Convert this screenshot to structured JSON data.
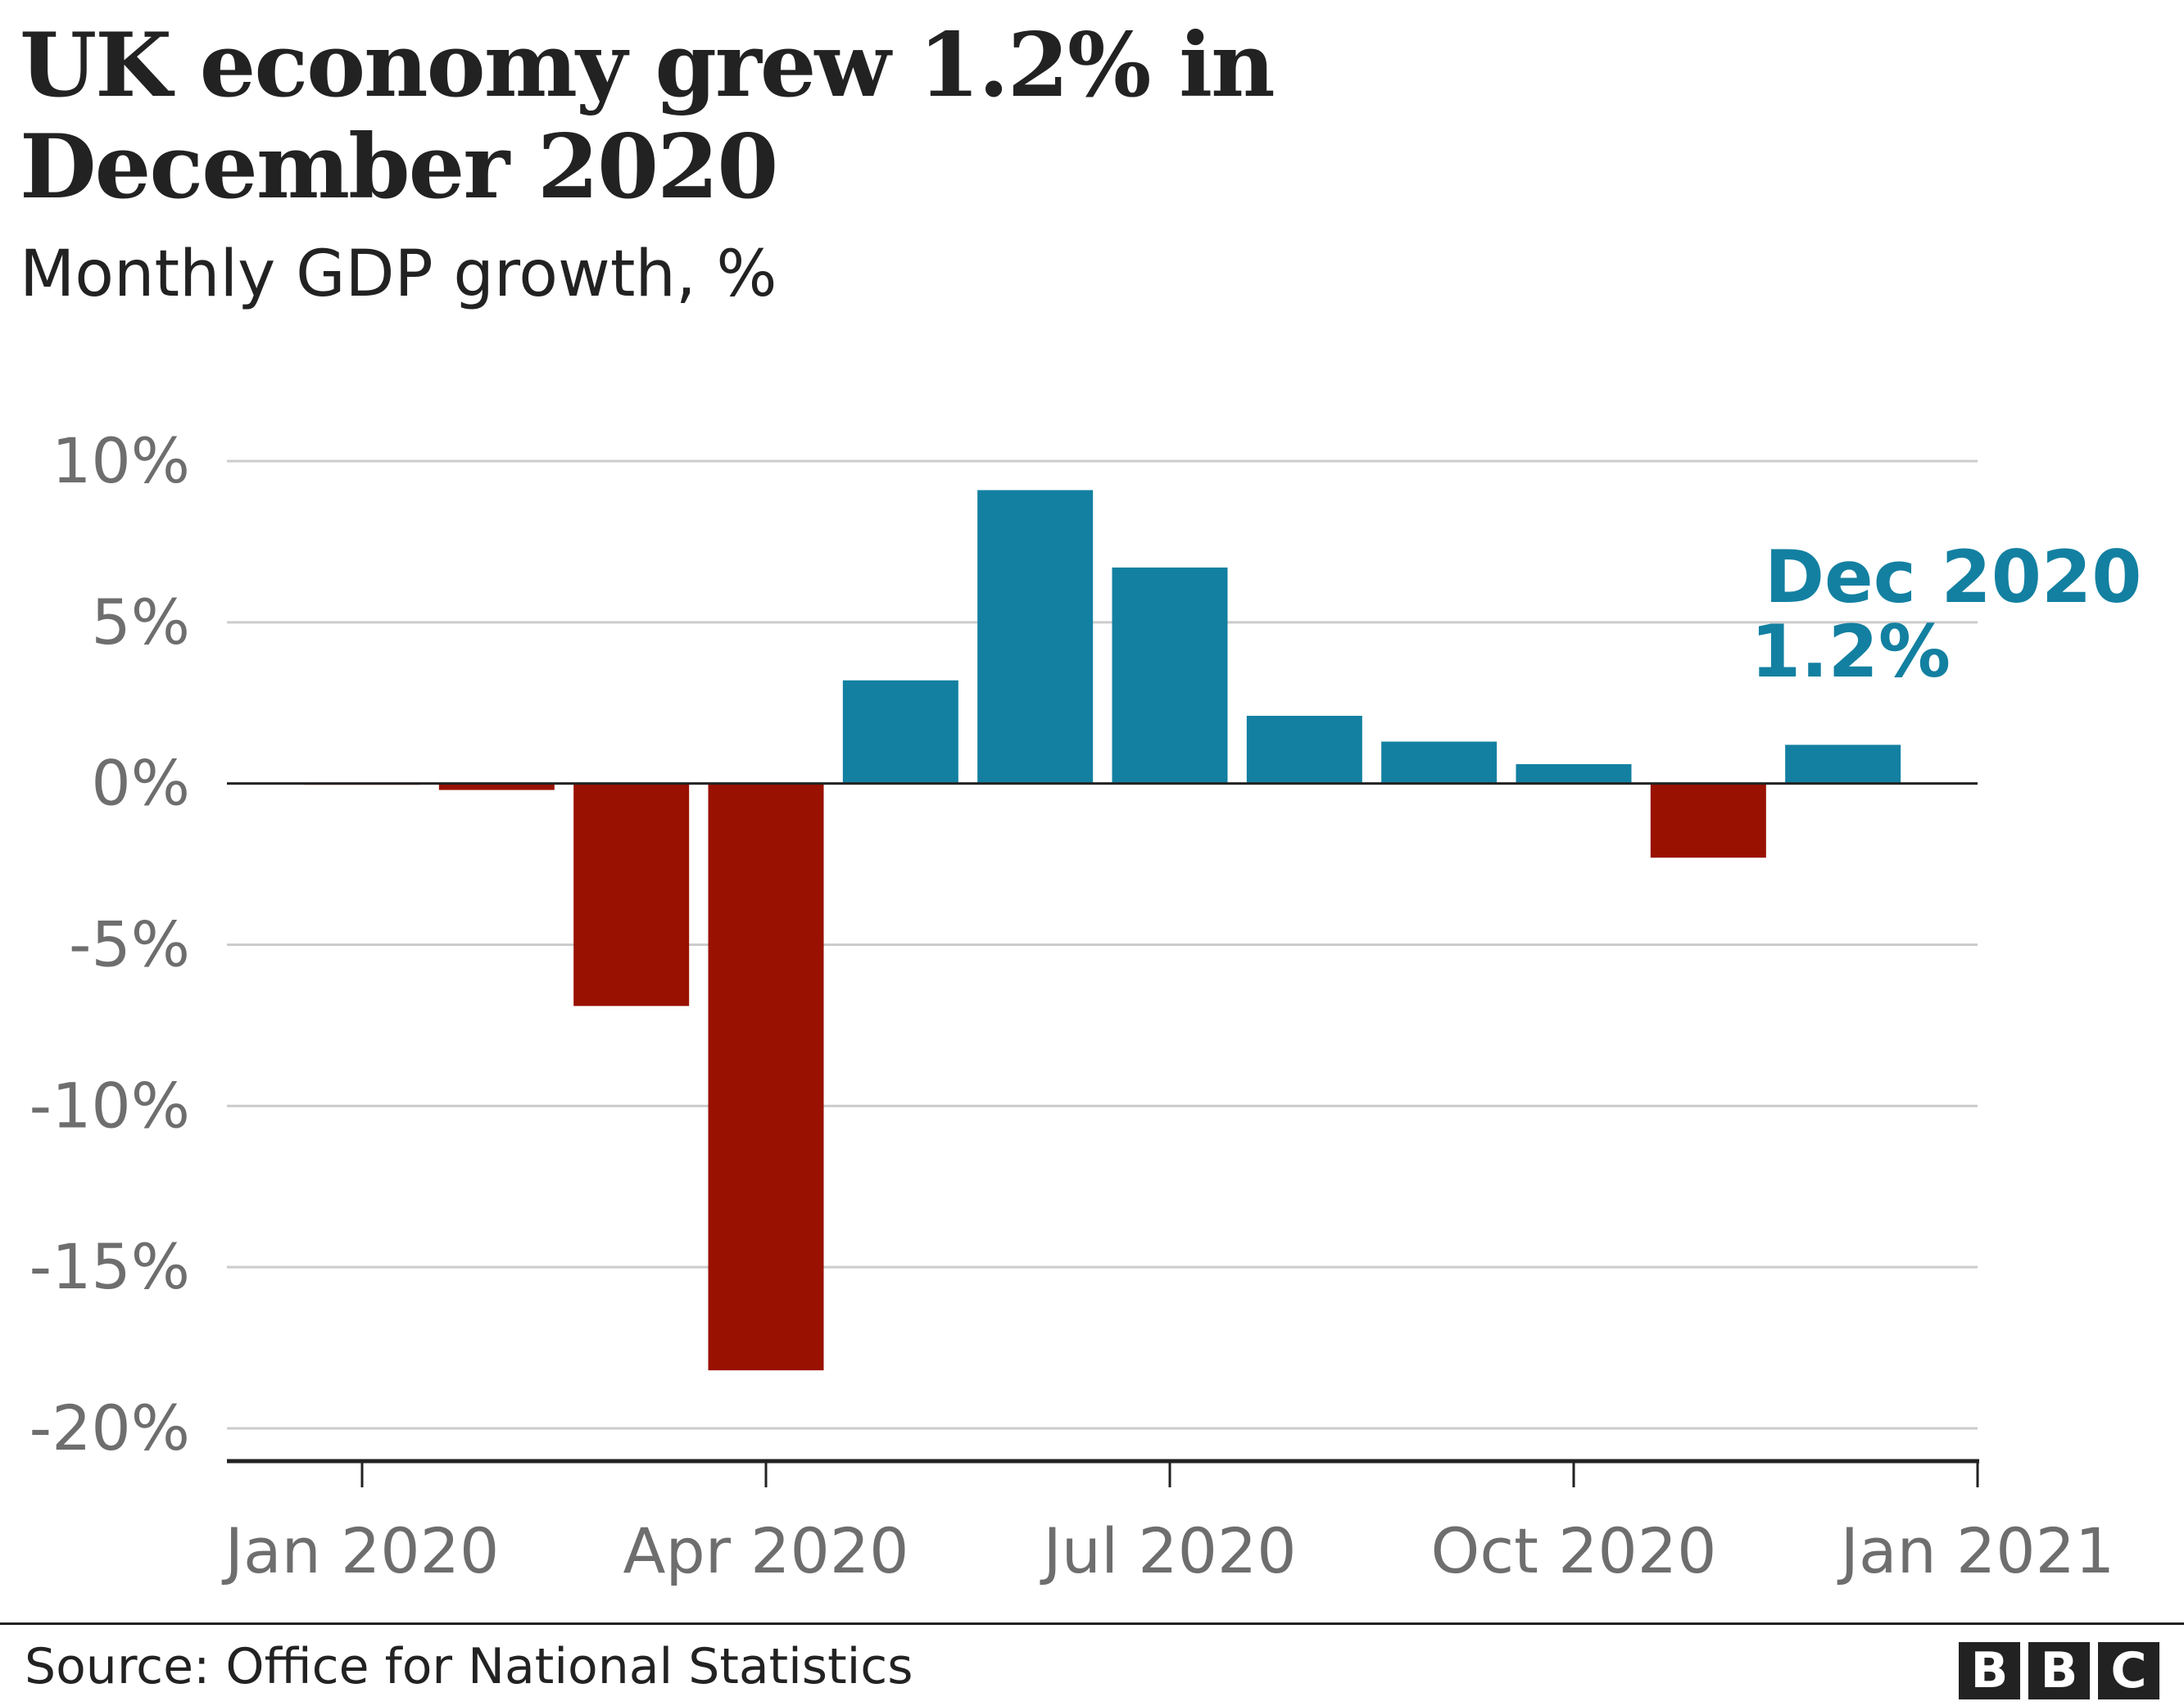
{
  "chart_data": {
    "type": "bar",
    "title": "UK economy grew 1.2% in December 2020",
    "subtitle": "Monthly GDP growth, %",
    "categories": [
      "Jan 2020",
      "Feb 2020",
      "Mar 2020",
      "Apr 2020",
      "May 2020",
      "Jun 2020",
      "Jul 2020",
      "Aug 2020",
      "Sep 2020",
      "Oct 2020",
      "Nov 2020",
      "Dec 2020"
    ],
    "values": [
      0.0,
      -0.2,
      -6.9,
      -18.2,
      3.2,
      9.1,
      6.7,
      2.1,
      1.3,
      0.6,
      -2.3,
      1.2
    ],
    "ylim": [
      -20,
      10
    ],
    "yticks": [
      10,
      5,
      0,
      -5,
      -10,
      -15,
      -20
    ],
    "ytick_labels": [
      "10%",
      "5%",
      "0%",
      "-5%",
      "-10%",
      "-15%",
      "-20%"
    ],
    "xtick_labels": [
      "Jan 2020",
      "Apr 2020",
      "Jul 2020",
      "Oct 2020",
      "Jan 2021"
    ],
    "xlabel": "",
    "ylabel": "",
    "grid": true,
    "colors": {
      "positive": "#1380A1",
      "negative": "#991100"
    },
    "annotation": {
      "label": "Dec 2020",
      "value": "1.2%"
    }
  },
  "footer": {
    "source": "Source: Office for National Statistics",
    "logo": "BBC"
  }
}
